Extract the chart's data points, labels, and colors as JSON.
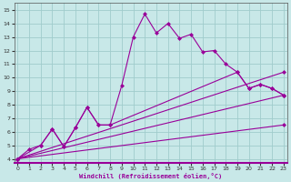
{
  "xlabel": "Windchill (Refroidissement éolien,°C)",
  "bg_color": "#c8e8e8",
  "grid_color": "#a0cccc",
  "line_color": "#990099",
  "x_ticks": [
    0,
    1,
    2,
    3,
    4,
    5,
    6,
    7,
    8,
    9,
    10,
    11,
    12,
    13,
    14,
    15,
    16,
    17,
    18,
    19,
    20,
    21,
    22,
    23
  ],
  "y_ticks": [
    4,
    5,
    6,
    7,
    8,
    9,
    10,
    11,
    12,
    13,
    14,
    15
  ],
  "ylim": [
    3.7,
    15.5
  ],
  "xlim": [
    -0.3,
    23.3
  ],
  "series": [
    {
      "x": [
        0,
        1,
        2,
        3,
        4,
        5,
        6,
        7,
        8,
        9,
        10,
        11,
        12,
        13,
        14,
        15,
        16,
        17,
        18,
        19,
        20,
        21,
        22,
        23
      ],
      "y": [
        4.0,
        4.7,
        5.0,
        6.2,
        4.9,
        6.3,
        7.8,
        6.5,
        6.5,
        9.4,
        13.0,
        14.7,
        13.3,
        14.0,
        12.9,
        13.2,
        11.9,
        12.0,
        11.0,
        10.4,
        9.2,
        9.5,
        9.2,
        8.7
      ],
      "marker": "D",
      "markersize": 2.5,
      "linewidth": 0.8,
      "linestyle": "-"
    },
    {
      "x": [
        0,
        2,
        3,
        4,
        5,
        6,
        7,
        8,
        19,
        20,
        21,
        22,
        23
      ],
      "y": [
        4.0,
        5.0,
        6.2,
        4.9,
        6.3,
        7.8,
        6.5,
        6.5,
        10.4,
        9.2,
        9.5,
        9.2,
        8.7
      ],
      "marker": "D",
      "markersize": 2.5,
      "linewidth": 0.8,
      "linestyle": "-"
    },
    {
      "x": [
        0,
        23
      ],
      "y": [
        4.0,
        10.4
      ],
      "marker": "D",
      "markersize": 2.5,
      "linewidth": 0.8,
      "linestyle": "-"
    },
    {
      "x": [
        0,
        23
      ],
      "y": [
        4.0,
        8.7
      ],
      "marker": "D",
      "markersize": 2.5,
      "linewidth": 0.8,
      "linestyle": "-"
    },
    {
      "x": [
        0,
        23
      ],
      "y": [
        4.0,
        6.5
      ],
      "marker": "D",
      "markersize": 2.5,
      "linewidth": 0.8,
      "linestyle": "-"
    }
  ]
}
